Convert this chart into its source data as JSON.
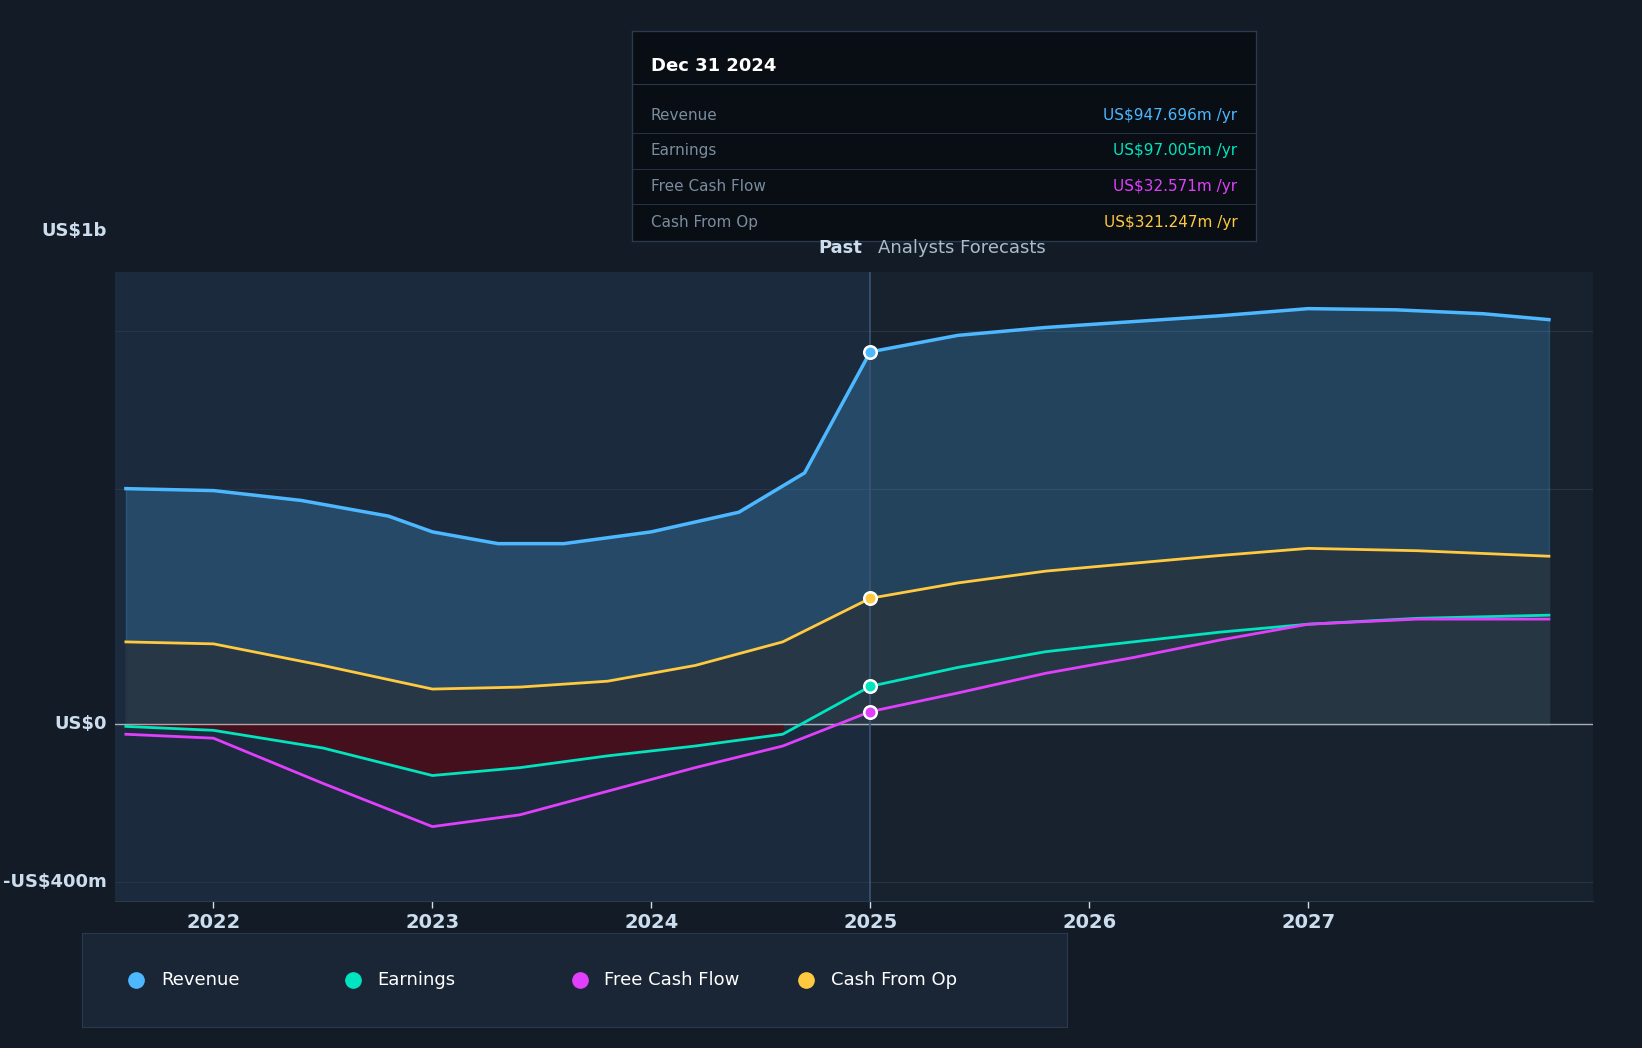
{
  "bg_color": "#131b26",
  "plot_bg_past": "#1a2636",
  "plot_bg_future": "#16202e",
  "grid_color": "#2a3a4e",
  "ylabel_1b": "US$1b",
  "ylabel_0": "US$0",
  "ylabel_neg400": "-US$400m",
  "past_label": "Past",
  "future_label": "Analysts Forecasts",
  "divider_year": 2025,
  "x_ticks": [
    2022,
    2023,
    2024,
    2025,
    2026,
    2027
  ],
  "ylim": [
    -450,
    1150
  ],
  "tooltip": {
    "date": "Dec 31 2024",
    "rows": [
      {
        "label": "Revenue",
        "value": "US$947.696m /yr",
        "color": "#4db8ff"
      },
      {
        "label": "Earnings",
        "value": "US$97.005m /yr",
        "color": "#00e5c0"
      },
      {
        "label": "Free Cash Flow",
        "value": "US$32.571m /yr",
        "color": "#e040fb"
      },
      {
        "label": "Cash From Op",
        "value": "US$321.247m /yr",
        "color": "#ffc940"
      }
    ],
    "bg_color": "#090d14",
    "border_color": "#2a3a4e",
    "label_color": "#7a8c9e",
    "title_color": "#ffffff"
  },
  "legend": [
    {
      "label": "Revenue",
      "color": "#4db8ff"
    },
    {
      "label": "Earnings",
      "color": "#00e5c0"
    },
    {
      "label": "Free Cash Flow",
      "color": "#e040fb"
    },
    {
      "label": "Cash From Op",
      "color": "#ffc940"
    }
  ],
  "revenue": {
    "x": [
      2021.6,
      2022.0,
      2022.4,
      2022.8,
      2023.0,
      2023.3,
      2023.6,
      2024.0,
      2024.4,
      2024.7,
      2025.0,
      2025.4,
      2025.8,
      2026.2,
      2026.6,
      2027.0,
      2027.4,
      2027.8,
      2028.1
    ],
    "y": [
      600,
      595,
      570,
      530,
      490,
      460,
      460,
      490,
      540,
      640,
      948,
      990,
      1010,
      1025,
      1040,
      1058,
      1055,
      1045,
      1030
    ],
    "color": "#4db8ff",
    "lw": 2.5
  },
  "earnings": {
    "x": [
      2021.6,
      2022.0,
      2022.5,
      2023.0,
      2023.4,
      2023.8,
      2024.2,
      2024.6,
      2025.0,
      2025.4,
      2025.8,
      2026.2,
      2026.6,
      2027.0,
      2027.5,
      2028.1
    ],
    "y": [
      -5,
      -15,
      -60,
      -130,
      -110,
      -80,
      -55,
      -25,
      97,
      145,
      185,
      210,
      235,
      255,
      270,
      278
    ],
    "color": "#00e5c0",
    "neg_fill_color": "#4a0e1a",
    "lw": 2.0
  },
  "fcf": {
    "x": [
      2021.6,
      2022.0,
      2022.5,
      2023.0,
      2023.4,
      2023.8,
      2024.2,
      2024.6,
      2025.0,
      2025.4,
      2025.8,
      2026.2,
      2026.6,
      2027.0,
      2027.5,
      2028.1
    ],
    "y": [
      -25,
      -35,
      -150,
      -260,
      -230,
      -170,
      -110,
      -55,
      32.6,
      80,
      130,
      170,
      215,
      255,
      268,
      268
    ],
    "color": "#e040fb",
    "lw": 2.0
  },
  "cash_from_op": {
    "x": [
      2021.6,
      2022.0,
      2022.5,
      2023.0,
      2023.4,
      2023.8,
      2024.2,
      2024.6,
      2025.0,
      2025.4,
      2025.8,
      2026.2,
      2026.6,
      2027.0,
      2027.5,
      2028.1
    ],
    "y": [
      210,
      205,
      150,
      90,
      95,
      110,
      150,
      210,
      321,
      360,
      390,
      410,
      430,
      448,
      442,
      428
    ],
    "color": "#ffc940",
    "lw": 2.0
  },
  "marker_x": 2025.0,
  "marker_size": 9
}
